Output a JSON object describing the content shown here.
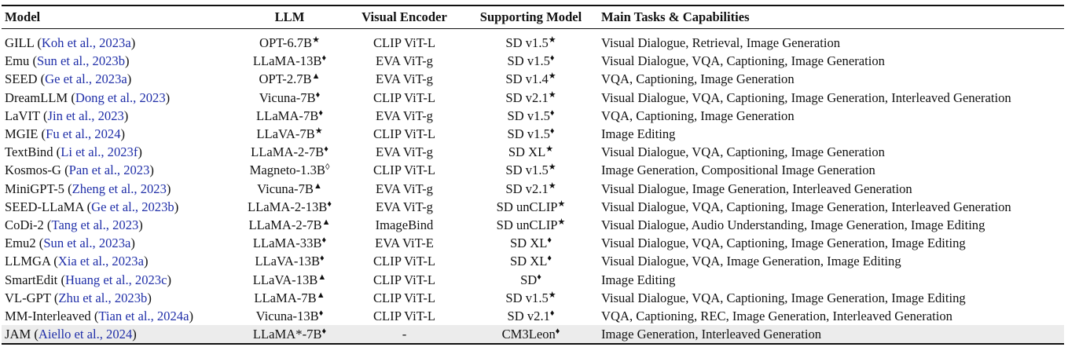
{
  "table": {
    "headers": {
      "model": "Model",
      "llm": "LLM",
      "encoder": "Visual Encoder",
      "support": "Supporting Model",
      "tasks": "Main Tasks & Capabilities"
    },
    "rows": [
      {
        "name": "GILL",
        "cite": "Koh et al., 2023a",
        "llm": "OPT-6.7B",
        "llm_mark": "★",
        "encoder": "CLIP ViT-L",
        "support": "SD v1.5",
        "support_mark": "★",
        "tasks": "Visual Dialogue, Retrieval, Image Generation"
      },
      {
        "name": "Emu",
        "cite": "Sun et al., 2023b",
        "llm": "LLaMA-13B",
        "llm_mark": "♦",
        "encoder": "EVA ViT-g",
        "support": "SD v1.5",
        "support_mark": "♦",
        "tasks": "Visual Dialogue, VQA, Captioning, Image Generation"
      },
      {
        "name": "SEED",
        "cite": "Ge et al., 2023a",
        "llm": "OPT-2.7B",
        "llm_mark": "▲",
        "encoder": "EVA ViT-g",
        "support": "SD v1.4",
        "support_mark": "★",
        "tasks": "VQA, Captioning, Image Generation"
      },
      {
        "name": "DreamLLM",
        "cite": "Dong et al., 2023",
        "llm": "Vicuna-7B",
        "llm_mark": "♦",
        "encoder": "CLIP ViT-L",
        "support": "SD v2.1",
        "support_mark": "★",
        "tasks": "Visual Dialogue, VQA, Captioning, Image Generation, Interleaved Generation"
      },
      {
        "name": "LaVIT",
        "cite": "Jin et al., 2023",
        "llm": "LLaMA-7B",
        "llm_mark": "♦",
        "encoder": "EVA ViT-g",
        "support": "SD v1.5",
        "support_mark": "♦",
        "tasks": "VQA, Captioning, Image Generation"
      },
      {
        "name": "MGIE",
        "cite": "Fu et al., 2024",
        "llm": "LLaVA-7B",
        "llm_mark": "★",
        "encoder": "CLIP ViT-L",
        "support": "SD v1.5",
        "support_mark": "♦",
        "tasks": "Image Editing"
      },
      {
        "name": "TextBind",
        "cite": "Li et al., 2023f",
        "llm": "LLaMA-2-7B",
        "llm_mark": "♦",
        "encoder": "EVA ViT-g",
        "support": "SD XL",
        "support_mark": "★",
        "tasks": "Visual Dialogue, VQA, Captioning, Image Generation"
      },
      {
        "name": "Kosmos-G",
        "cite": "Pan et al., 2023",
        "llm": "Magneto-1.3B",
        "llm_mark": "◊",
        "encoder": "CLIP ViT-L",
        "support": "SD v1.5",
        "support_mark": "★",
        "tasks": "Image Generation, Compositional Image Generation"
      },
      {
        "name": "MiniGPT-5",
        "cite": "Zheng et al., 2023",
        "llm": "Vicuna-7B",
        "llm_mark": "▲",
        "encoder": "EVA ViT-g",
        "support": "SD v2.1",
        "support_mark": "★",
        "tasks": "Visual Dialogue, Image Generation, Interleaved Generation"
      },
      {
        "name": "SEED-LLaMA",
        "cite": "Ge et al., 2023b",
        "llm": "LLaMA-2-13B",
        "llm_mark": "♦",
        "encoder": "EVA ViT-g",
        "support": "SD unCLIP",
        "support_mark": "★",
        "tasks": "Visual Dialogue, VQA, Captioning, Image Generation, Interleaved Generation"
      },
      {
        "name": "CoDi-2",
        "cite": "Tang et al., 2023",
        "llm": "LLaMA-2-7B",
        "llm_mark": "▲",
        "encoder": "ImageBind",
        "support": "SD unCLIP",
        "support_mark": "★",
        "tasks": "Visual Dialogue, Audio Understanding, Image Generation, Image Editing"
      },
      {
        "name": "Emu2",
        "cite": "Sun et al., 2023a",
        "llm": "LLaMA-33B",
        "llm_mark": "♦",
        "encoder": "EVA ViT-E",
        "support": "SD XL",
        "support_mark": "♦",
        "tasks": "Visual Dialogue, VQA, Captioning, Image Generation, Image Editing"
      },
      {
        "name": "LLMGA",
        "cite": "Xia et al., 2023a",
        "llm": "LLaVA-13B",
        "llm_mark": "♦",
        "encoder": "CLIP ViT-L",
        "support": "SD XL",
        "support_mark": "♦",
        "tasks": "Visual Dialogue, VQA, Image Generation, Image Editing"
      },
      {
        "name": "SmartEdit",
        "cite": "Huang et al., 2023c",
        "llm": "LLaVA-13B",
        "llm_mark": "▲",
        "encoder": "CLIP ViT-L",
        "support": "SD",
        "support_mark": "♦",
        "tasks": "Image Editing"
      },
      {
        "name": "VL-GPT",
        "cite": "Zhu et al., 2023b",
        "llm": "LLaMA-7B",
        "llm_mark": "▲",
        "encoder": "CLIP ViT-L",
        "support": "SD v1.5",
        "support_mark": "★",
        "tasks": "Visual Dialogue, VQA, Captioning, Image Generation, Image Editing"
      },
      {
        "name": "MM-Interleaved",
        "cite": "Tian et al., 2024a",
        "llm": "Vicuna-13B",
        "llm_mark": "♦",
        "encoder": "CLIP ViT-L",
        "support": "SD v2.1",
        "support_mark": "♦",
        "tasks": "VQA, Captioning, REC, Image Generation, Interleaved Generation"
      },
      {
        "name": "JAM",
        "cite": "Aiello et al., 2024",
        "llm": "LLaMA*-7B",
        "llm_mark": "♦",
        "encoder": "-",
        "support": "CM3Leon",
        "support_mark": "♦",
        "tasks": "Image Generation, Interleaved Generation",
        "shaded": true
      }
    ]
  }
}
